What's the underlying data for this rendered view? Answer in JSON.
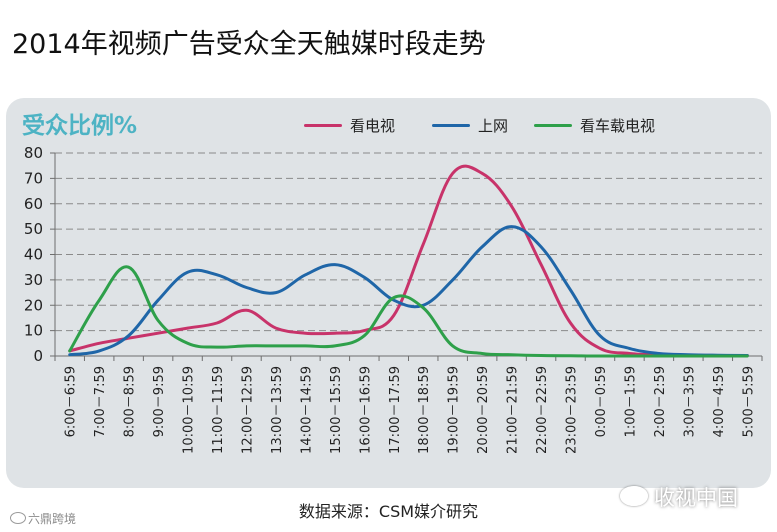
{
  "title": "2014年视频广告受众全天触媒时段走势",
  "source": "数据来源：CSM媒介研究",
  "watermark_left": "六鼎跨境",
  "watermark_right": "收视中国",
  "colors": {
    "tv": "#c8336a",
    "internet": "#1f66a8",
    "car_tv": "#2ea04a",
    "ylabel": "#4db3c4",
    "panel": "#dfe3e6"
  },
  "chart_data": {
    "type": "line",
    "title": "2014年视频广告受众全天触媒时段走势",
    "ylabel": "受众比例%",
    "xlabel": "",
    "ylim": [
      0,
      80
    ],
    "yticks": [
      0,
      10,
      20,
      30,
      40,
      50,
      60,
      70,
      80
    ],
    "grid": true,
    "legend_position": "top",
    "categories": [
      "6:00－6:59",
      "7:00－7:59",
      "8:00－8:59",
      "9:00－9:59",
      "10:00－10:59",
      "11:00－11:59",
      "12:00－12:59",
      "13:00－13:59",
      "14:00－14:59",
      "15:00－15:59",
      "16:00－16:59",
      "17:00－17:59",
      "18:00－18:59",
      "19:00－19:59",
      "20:00－20:59",
      "21:00－21:59",
      "22:00－22:59",
      "23:00－23:59",
      "0:00－0:59",
      "1:00－1:59",
      "2:00－2:59",
      "3:00－3:59",
      "4:00－4:59",
      "5:00－5:59"
    ],
    "series": [
      {
        "name": "看电视",
        "values": [
          2,
          5,
          7,
          9,
          11,
          13,
          18,
          11,
          9,
          9,
          10,
          16,
          44,
          72,
          72,
          59,
          36,
          13,
          3,
          1,
          0.5,
          0.3,
          0.2,
          0.2
        ]
      },
      {
        "name": "上网",
        "values": [
          0.5,
          2,
          8,
          22,
          33,
          32,
          27,
          25,
          32,
          36,
          31,
          22,
          20,
          30,
          43,
          51,
          43,
          26,
          8,
          3,
          1,
          0.5,
          0.3,
          0.2
        ]
      },
      {
        "name": "看车载电视",
        "values": [
          2,
          22,
          35,
          14,
          5,
          3.5,
          4,
          4,
          4,
          4,
          8,
          23,
          19,
          4,
          1,
          0.5,
          0.2,
          0.1,
          0,
          0,
          0,
          0,
          0,
          0
        ]
      }
    ]
  }
}
